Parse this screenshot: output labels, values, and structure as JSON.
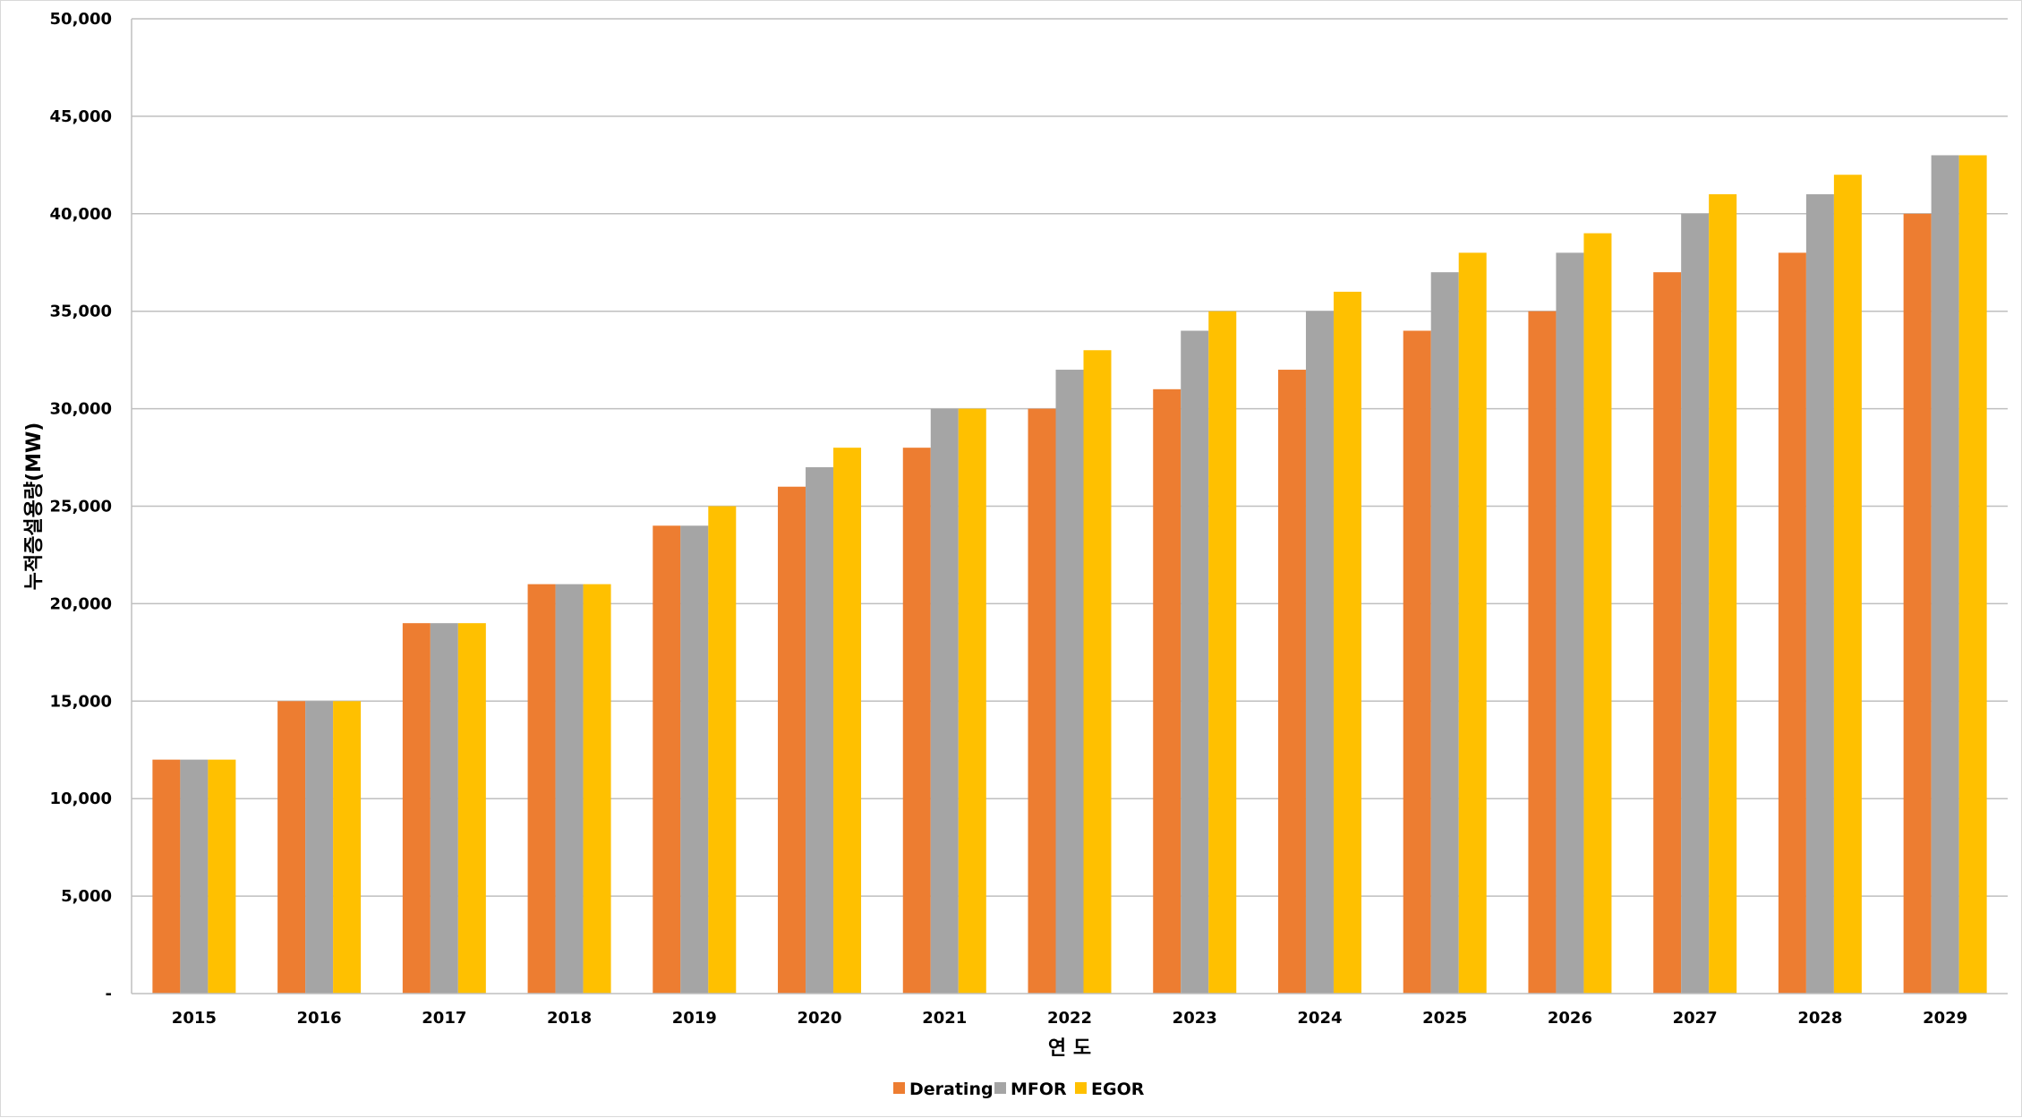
{
  "chart_data": {
    "type": "bar",
    "title": "",
    "xlabel": "연 도",
    "ylabel": "누적증설용량(MW)",
    "ylim": [
      0,
      50000
    ],
    "yticks": [
      0,
      5000,
      10000,
      15000,
      20000,
      25000,
      30000,
      35000,
      40000,
      45000,
      50000
    ],
    "ytick_labels": [
      "-",
      "5,000",
      "10,000",
      "15,000",
      "20,000",
      "25,000",
      "30,000",
      "35,000",
      "40,000",
      "45,000",
      "50,000"
    ],
    "grid": true,
    "legend_position": "bottom-center",
    "categories": [
      "2015",
      "2016",
      "2017",
      "2018",
      "2019",
      "2020",
      "2021",
      "2022",
      "2023",
      "2024",
      "2025",
      "2026",
      "2027",
      "2028",
      "2029"
    ],
    "series": [
      {
        "name": "Derating",
        "color": "#ED7D31",
        "values": [
          12000,
          15000,
          19000,
          21000,
          24000,
          26000,
          28000,
          30000,
          31000,
          32000,
          34000,
          35000,
          37000,
          38000,
          40000
        ]
      },
      {
        "name": "MFOR",
        "color": "#A5A5A5",
        "values": [
          12000,
          15000,
          19000,
          21000,
          24000,
          27000,
          30000,
          32000,
          34000,
          35000,
          37000,
          38000,
          40000,
          41000,
          43000
        ]
      },
      {
        "name": "EGOR",
        "color": "#FFC000",
        "values": [
          12000,
          15000,
          19000,
          21000,
          25000,
          28000,
          30000,
          33000,
          35000,
          36000,
          38000,
          39000,
          41000,
          42000,
          43000
        ]
      }
    ]
  }
}
